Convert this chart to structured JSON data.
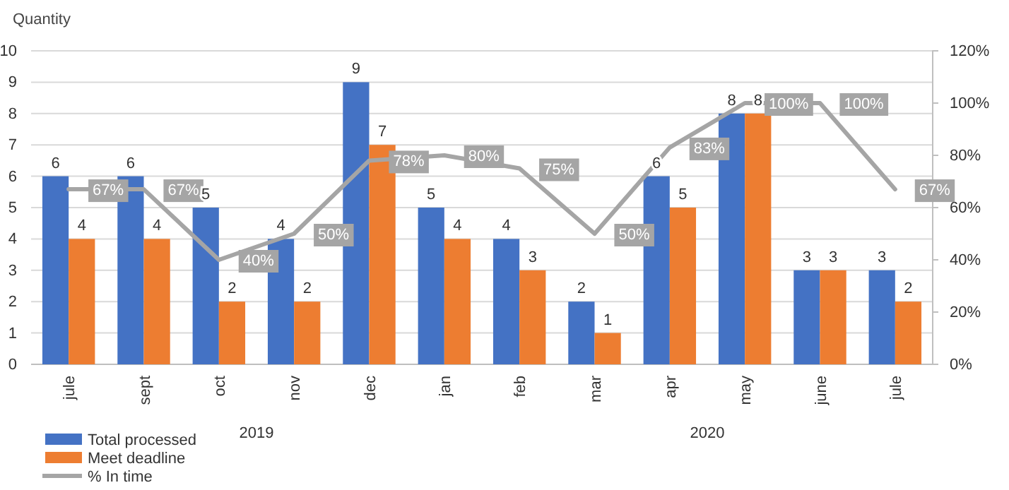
{
  "chart_data": {
    "type": "bar",
    "ylabel": "Quantity",
    "categories": [
      "jule",
      "sept",
      "oct",
      "nov",
      "dec",
      "jan",
      "feb",
      "mar",
      "apr",
      "may",
      "june",
      "jule"
    ],
    "series": [
      {
        "name": "Total processed",
        "color": "#4472c4",
        "values": [
          6,
          6,
          5,
          4,
          9,
          5,
          4,
          2,
          6,
          8,
          3,
          3
        ]
      },
      {
        "name": "Meet deadline",
        "color": "#ed7d31",
        "values": [
          4,
          4,
          2,
          2,
          7,
          4,
          3,
          1,
          5,
          8,
          3,
          2
        ]
      },
      {
        "name": "% In time",
        "type": "line",
        "axis": "y2",
        "color": "#a5a5a5",
        "values": [
          67,
          67,
          40,
          50,
          78,
          80,
          75,
          50,
          83,
          100,
          100,
          67
        ],
        "value_labels": [
          "67%",
          "67%",
          "40%",
          "50%",
          "78%",
          "80%",
          "75%",
          "50%",
          "83%",
          "100%",
          "100%",
          "67%"
        ]
      }
    ],
    "ylim": [
      0,
      10
    ],
    "yticks": [
      0,
      1,
      2,
      3,
      4,
      5,
      6,
      7,
      8,
      9,
      10
    ],
    "y2lim": [
      0,
      120
    ],
    "y2ticks": [
      {
        "value": 0,
        "label": "0%"
      },
      {
        "value": 20,
        "label": "20%"
      },
      {
        "value": 40,
        "label": "40%"
      },
      {
        "value": 60,
        "label": "60%"
      },
      {
        "value": 80,
        "label": "80%"
      },
      {
        "value": 100,
        "label": "100%"
      },
      {
        "value": 120,
        "label": "120%"
      }
    ],
    "grid": "y",
    "data_labels": true,
    "legend": "bottom left",
    "annotations": [
      "2019",
      "2020"
    ]
  }
}
